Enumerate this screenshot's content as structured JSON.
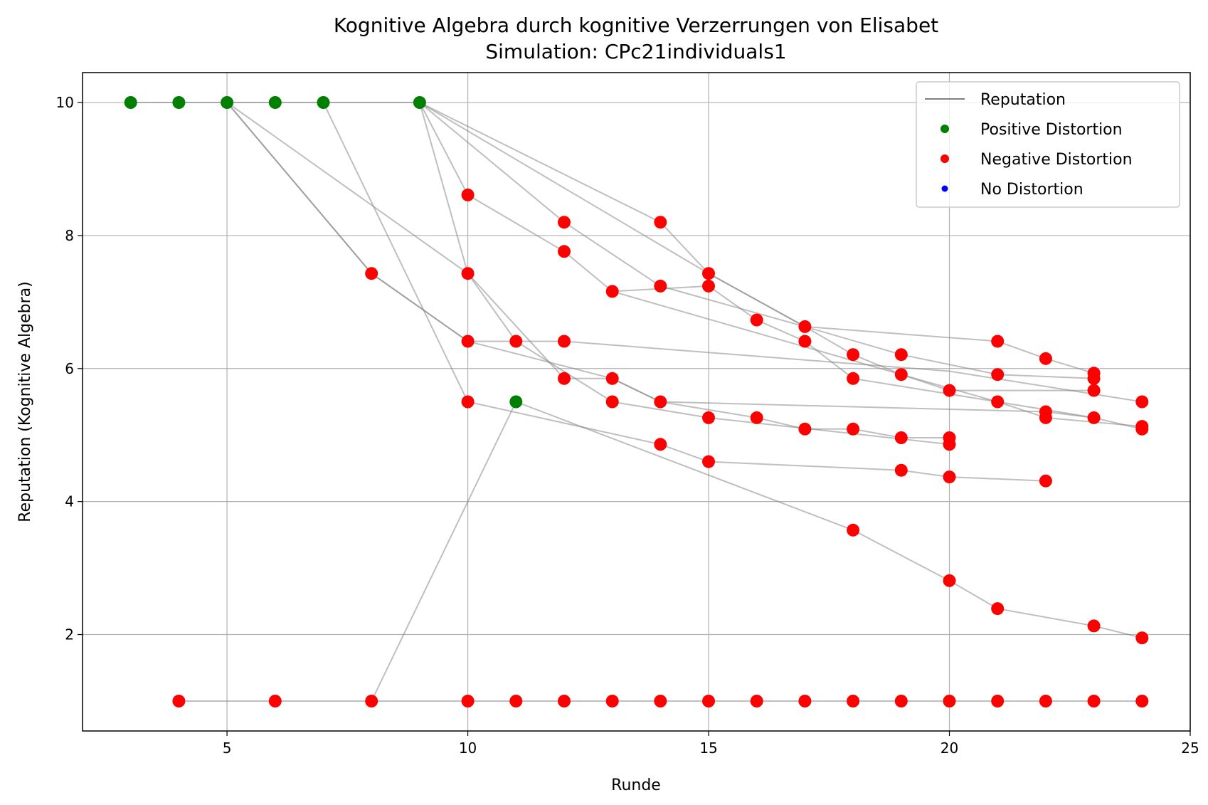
{
  "chart_data": {
    "type": "scatter",
    "title": "Kognitive Algebra durch kognitive Verzerrungen von Elisabet",
    "subtitle": "Simulation: CPc21individuals1",
    "xlabel": "Runde",
    "ylabel": "Reputation (Kognitive Algebra)",
    "xlim": [
      2,
      25
    ],
    "ylim": [
      0.55,
      10.45
    ],
    "xticks": [
      5,
      10,
      15,
      20,
      25
    ],
    "yticks": [
      2,
      4,
      6,
      8,
      10
    ],
    "grid": true,
    "legend_position": "top-right",
    "legend": [
      {
        "label": "Reputation",
        "kind": "line",
        "color": "#808080"
      },
      {
        "label": "Positive Distortion",
        "kind": "marker",
        "color": "#008000"
      },
      {
        "label": "Negative Distortion",
        "kind": "marker",
        "color": "#ff0000"
      },
      {
        "label": "No Distortion",
        "kind": "marker",
        "color": "#0000ff"
      }
    ],
    "colors": {
      "positive": "#008000",
      "negative": "#ff0000",
      "none": "#0000ff",
      "line": "#808080"
    },
    "series": [
      {
        "points": [
          [
            3,
            10
          ],
          [
            4,
            10
          ],
          [
            5,
            10
          ],
          [
            6,
            10
          ],
          [
            7,
            10
          ],
          [
            9,
            10
          ]
        ],
        "distortion": "positive"
      },
      {
        "points": [
          [
            5,
            10
          ],
          [
            8,
            7.43
          ],
          [
            10,
            6.41
          ],
          [
            11,
            6.41
          ],
          [
            12,
            6.41
          ],
          [
            20,
            5.96
          ],
          [
            24,
            5.5
          ]
        ],
        "distortion": "negative"
      },
      {
        "points": [
          [
            5,
            10
          ],
          [
            8,
            7.43
          ],
          [
            10,
            6.41
          ],
          [
            13,
            5.85
          ],
          [
            14,
            5.5
          ],
          [
            16,
            5.26
          ],
          [
            17,
            5.09
          ],
          [
            18,
            5.09
          ],
          [
            19,
            4.96
          ],
          [
            20,
            4.96
          ]
        ],
        "distortion": "negative"
      },
      {
        "points": [
          [
            5,
            10
          ],
          [
            10,
            7.43
          ],
          [
            12,
            5.85
          ],
          [
            13,
            5.85
          ],
          [
            14,
            5.5
          ],
          [
            22,
            5.35
          ],
          [
            23,
            5.26
          ],
          [
            24,
            5.09
          ]
        ],
        "distortion": "negative"
      },
      {
        "points": [
          [
            7,
            10
          ],
          [
            10,
            5.5
          ],
          [
            14,
            4.86
          ],
          [
            15,
            4.6
          ],
          [
            19,
            4.47
          ],
          [
            20,
            4.37
          ],
          [
            22,
            4.31
          ]
        ],
        "distortion": "negative"
      },
      {
        "points": [
          [
            9,
            10
          ],
          [
            10,
            7.43
          ],
          [
            11,
            6.41
          ],
          [
            13,
            5.5
          ],
          [
            15,
            5.26
          ],
          [
            20,
            4.86
          ]
        ],
        "distortion": "negative"
      },
      {
        "points": [
          [
            9,
            10
          ],
          [
            10,
            8.61
          ],
          [
            12,
            7.76
          ],
          [
            13,
            7.16
          ],
          [
            15,
            7.24
          ],
          [
            16,
            6.73
          ],
          [
            17,
            6.41
          ],
          [
            18,
            5.85
          ],
          [
            21,
            5.5
          ],
          [
            22,
            5.26
          ],
          [
            24,
            5.13
          ]
        ],
        "distortion": "negative"
      },
      {
        "points": [
          [
            9,
            10
          ],
          [
            12,
            8.2
          ],
          [
            14,
            7.24
          ],
          [
            17,
            6.63
          ],
          [
            18,
            6.21
          ],
          [
            19,
            5.91
          ],
          [
            21,
            5.5
          ],
          [
            23,
            5.26
          ]
        ],
        "distortion": "negative"
      },
      {
        "points": [
          [
            9,
            10
          ],
          [
            14,
            8.2
          ],
          [
            15,
            7.43
          ],
          [
            17,
            6.63
          ],
          [
            21,
            6.41
          ],
          [
            22,
            6.15
          ],
          [
            23,
            5.93
          ]
        ],
        "distortion": "negative"
      },
      {
        "points": [
          [
            9,
            10
          ],
          [
            15,
            7.43
          ],
          [
            17,
            6.63
          ],
          [
            19,
            6.21
          ],
          [
            21,
            5.91
          ],
          [
            23,
            5.85
          ]
        ],
        "distortion": "negative"
      },
      {
        "points": [
          [
            13,
            7.16
          ],
          [
            19,
            5.91
          ],
          [
            20,
            5.67
          ],
          [
            23,
            5.67
          ]
        ],
        "distortion": "negative"
      },
      {
        "points": [
          [
            11,
            5.5
          ],
          [
            18,
            3.57
          ],
          [
            20,
            2.81
          ],
          [
            21,
            2.39
          ],
          [
            23,
            2.13
          ],
          [
            24,
            1.95
          ]
        ],
        "distortion": "negative"
      },
      {
        "points": [
          [
            8,
            1
          ],
          [
            11,
            5.5
          ]
        ],
        "distortion": "positive"
      },
      {
        "points": [
          [
            4,
            1
          ],
          [
            6,
            1
          ],
          [
            8,
            1
          ],
          [
            10,
            1
          ],
          [
            11,
            1
          ],
          [
            12,
            1
          ],
          [
            13,
            1
          ],
          [
            14,
            1
          ],
          [
            15,
            1
          ],
          [
            16,
            1
          ],
          [
            17,
            1
          ],
          [
            18,
            1
          ],
          [
            19,
            1
          ],
          [
            20,
            1
          ],
          [
            21,
            1
          ],
          [
            22,
            1
          ],
          [
            23,
            1
          ],
          [
            24,
            1
          ]
        ],
        "distortion": "negative"
      }
    ],
    "markers": [
      {
        "x": 3,
        "y": 10,
        "distortion": "positive"
      },
      {
        "x": 4,
        "y": 10,
        "distortion": "positive"
      },
      {
        "x": 5,
        "y": 10,
        "distortion": "positive"
      },
      {
        "x": 6,
        "y": 10,
        "distortion": "positive"
      },
      {
        "x": 7,
        "y": 10,
        "distortion": "positive"
      },
      {
        "x": 9,
        "y": 10,
        "distortion": "positive"
      },
      {
        "x": 11,
        "y": 5.5,
        "distortion": "positive"
      },
      {
        "x": 10,
        "y": 8.61,
        "distortion": "negative"
      },
      {
        "x": 8,
        "y": 7.43,
        "distortion": "negative"
      },
      {
        "x": 10,
        "y": 7.43,
        "distortion": "negative"
      },
      {
        "x": 10,
        "y": 6.41,
        "distortion": "negative"
      },
      {
        "x": 10,
        "y": 5.5,
        "distortion": "negative"
      },
      {
        "x": 11,
        "y": 6.41,
        "distortion": "negative"
      },
      {
        "x": 12,
        "y": 8.2,
        "distortion": "negative"
      },
      {
        "x": 12,
        "y": 7.76,
        "distortion": "negative"
      },
      {
        "x": 12,
        "y": 6.41,
        "distortion": "negative"
      },
      {
        "x": 12,
        "y": 5.85,
        "distortion": "negative"
      },
      {
        "x": 13,
        "y": 7.16,
        "distortion": "negative"
      },
      {
        "x": 13,
        "y": 5.85,
        "distortion": "negative"
      },
      {
        "x": 13,
        "y": 5.5,
        "distortion": "negative"
      },
      {
        "x": 14,
        "y": 8.2,
        "distortion": "negative"
      },
      {
        "x": 14,
        "y": 7.24,
        "distortion": "negative"
      },
      {
        "x": 14,
        "y": 5.5,
        "distortion": "negative"
      },
      {
        "x": 14,
        "y": 4.86,
        "distortion": "negative"
      },
      {
        "x": 15,
        "y": 7.43,
        "distortion": "negative"
      },
      {
        "x": 15,
        "y": 7.24,
        "distortion": "negative"
      },
      {
        "x": 15,
        "y": 5.26,
        "distortion": "negative"
      },
      {
        "x": 15,
        "y": 4.6,
        "distortion": "negative"
      },
      {
        "x": 16,
        "y": 6.73,
        "distortion": "negative"
      },
      {
        "x": 16,
        "y": 5.26,
        "distortion": "negative"
      },
      {
        "x": 17,
        "y": 6.63,
        "distortion": "negative"
      },
      {
        "x": 17,
        "y": 6.41,
        "distortion": "negative"
      },
      {
        "x": 17,
        "y": 5.09,
        "distortion": "negative"
      },
      {
        "x": 18,
        "y": 6.21,
        "distortion": "negative"
      },
      {
        "x": 18,
        "y": 5.85,
        "distortion": "negative"
      },
      {
        "x": 18,
        "y": 5.09,
        "distortion": "negative"
      },
      {
        "x": 18,
        "y": 3.57,
        "distortion": "negative"
      },
      {
        "x": 19,
        "y": 6.21,
        "distortion": "negative"
      },
      {
        "x": 19,
        "y": 5.91,
        "distortion": "negative"
      },
      {
        "x": 19,
        "y": 4.96,
        "distortion": "negative"
      },
      {
        "x": 19,
        "y": 4.47,
        "distortion": "negative"
      },
      {
        "x": 20,
        "y": 5.67,
        "distortion": "negative"
      },
      {
        "x": 20,
        "y": 4.96,
        "distortion": "negative"
      },
      {
        "x": 20,
        "y": 4.86,
        "distortion": "negative"
      },
      {
        "x": 20,
        "y": 4.37,
        "distortion": "negative"
      },
      {
        "x": 20,
        "y": 2.81,
        "distortion": "negative"
      },
      {
        "x": 21,
        "y": 6.41,
        "distortion": "negative"
      },
      {
        "x": 21,
        "y": 5.91,
        "distortion": "negative"
      },
      {
        "x": 21,
        "y": 5.5,
        "distortion": "negative"
      },
      {
        "x": 21,
        "y": 2.39,
        "distortion": "negative"
      },
      {
        "x": 22,
        "y": 6.15,
        "distortion": "negative"
      },
      {
        "x": 22,
        "y": 5.35,
        "distortion": "negative"
      },
      {
        "x": 22,
        "y": 5.26,
        "distortion": "negative"
      },
      {
        "x": 22,
        "y": 4.31,
        "distortion": "negative"
      },
      {
        "x": 23,
        "y": 5.93,
        "distortion": "negative"
      },
      {
        "x": 23,
        "y": 5.85,
        "distortion": "negative"
      },
      {
        "x": 23,
        "y": 5.67,
        "distortion": "negative"
      },
      {
        "x": 23,
        "y": 5.26,
        "distortion": "negative"
      },
      {
        "x": 23,
        "y": 2.13,
        "distortion": "negative"
      },
      {
        "x": 24,
        "y": 5.5,
        "distortion": "negative"
      },
      {
        "x": 24,
        "y": 5.13,
        "distortion": "negative"
      },
      {
        "x": 24,
        "y": 5.09,
        "distortion": "negative"
      },
      {
        "x": 24,
        "y": 1.95,
        "distortion": "negative"
      },
      {
        "x": 4,
        "y": 1,
        "distortion": "negative"
      },
      {
        "x": 6,
        "y": 1,
        "distortion": "negative"
      },
      {
        "x": 8,
        "y": 1,
        "distortion": "negative"
      },
      {
        "x": 10,
        "y": 1,
        "distortion": "negative"
      },
      {
        "x": 11,
        "y": 1,
        "distortion": "negative"
      },
      {
        "x": 12,
        "y": 1,
        "distortion": "negative"
      },
      {
        "x": 13,
        "y": 1,
        "distortion": "negative"
      },
      {
        "x": 14,
        "y": 1,
        "distortion": "negative"
      },
      {
        "x": 15,
        "y": 1,
        "distortion": "negative"
      },
      {
        "x": 16,
        "y": 1,
        "distortion": "negative"
      },
      {
        "x": 17,
        "y": 1,
        "distortion": "negative"
      },
      {
        "x": 18,
        "y": 1,
        "distortion": "negative"
      },
      {
        "x": 19,
        "y": 1,
        "distortion": "negative"
      },
      {
        "x": 20,
        "y": 1,
        "distortion": "negative"
      },
      {
        "x": 21,
        "y": 1,
        "distortion": "negative"
      },
      {
        "x": 22,
        "y": 1,
        "distortion": "negative"
      },
      {
        "x": 23,
        "y": 1,
        "distortion": "negative"
      },
      {
        "x": 24,
        "y": 1,
        "distortion": "negative"
      }
    ]
  }
}
